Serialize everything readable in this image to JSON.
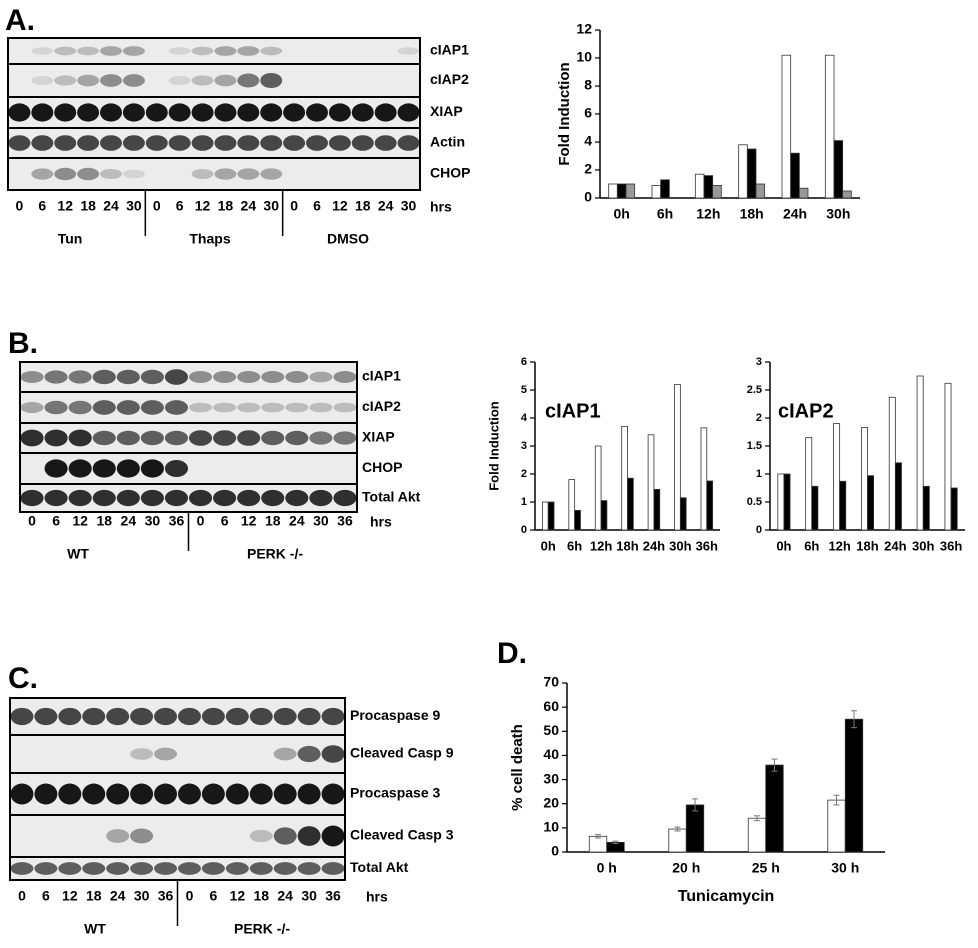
{
  "blots": {
    "A": {
      "label": "A.",
      "rows": [
        "cIAP1",
        "cIAP2",
        "XIAP",
        "Actin",
        "CHOP"
      ],
      "lanes": [
        "0",
        "6",
        "12",
        "18",
        "24",
        "30",
        "0",
        "6",
        "12",
        "18",
        "24",
        "30",
        "0",
        "6",
        "12",
        "18",
        "24",
        "30"
      ],
      "unit": "hrs",
      "groups": [
        "Tun",
        "Thaps",
        "DMSO"
      ]
    },
    "B": {
      "label": "B.",
      "rows": [
        "cIAP1",
        "cIAP2",
        "XIAP",
        "CHOP",
        "Total Akt"
      ],
      "lanes": [
        "0",
        "6",
        "12",
        "18",
        "24",
        "30",
        "36",
        "0",
        "6",
        "12",
        "18",
        "24",
        "30",
        "36"
      ],
      "unit": "hrs",
      "groups": [
        "WT",
        "PERK -/-"
      ]
    },
    "C": {
      "label": "C.",
      "rows": [
        "Procaspase 9",
        "Cleaved Casp 9",
        "Procaspase 3",
        "Cleaved Casp 3",
        "Total Akt"
      ],
      "lanes": [
        "0",
        "6",
        "12",
        "18",
        "24",
        "30",
        "36",
        "0",
        "6",
        "12",
        "18",
        "24",
        "30",
        "36"
      ],
      "unit": "hrs",
      "groups": [
        "WT",
        "PERK -/-"
      ]
    }
  },
  "chart_data": [
    {
      "type": "bar",
      "y_label": "Fold Induction",
      "categories": [
        "0h",
        "6h",
        "12h",
        "18h",
        "24h",
        "30h"
      ],
      "series": [
        {
          "color": "#ffffff",
          "values": [
            1,
            0.9,
            1.7,
            3.8,
            10.2,
            10.2
          ]
        },
        {
          "color": "#000000",
          "values": [
            1,
            1.3,
            1.6,
            3.5,
            3.2,
            4.1
          ]
        },
        {
          "color": "#999999",
          "values": [
            1,
            0,
            0.9,
            1,
            0.7,
            0.5
          ]
        }
      ],
      "ylim": [
        0,
        12
      ],
      "yticks": [
        0,
        2,
        4,
        6,
        8,
        10,
        12
      ]
    },
    {
      "type": "bar",
      "title": "cIAP1",
      "y_label": "Fold Induction",
      "categories": [
        "0h",
        "6h",
        "12h",
        "18h",
        "24h",
        "30h",
        "36h"
      ],
      "series": [
        {
          "color": "#ffffff",
          "values": [
            1,
            1.8,
            3,
            3.7,
            3.4,
            5.2,
            3.65
          ]
        },
        {
          "color": "#000000",
          "values": [
            1,
            0.7,
            1.05,
            1.85,
            1.45,
            1.15,
            1.75
          ]
        }
      ],
      "ylim": [
        0,
        6
      ],
      "yticks": [
        0,
        1,
        2,
        3,
        4,
        5,
        6
      ]
    },
    {
      "type": "bar",
      "title": "cIAP2",
      "categories": [
        "0h",
        "6h",
        "12h",
        "18h",
        "24h",
        "30h",
        "36h"
      ],
      "series": [
        {
          "color": "#ffffff",
          "values": [
            1,
            1.65,
            1.9,
            1.83,
            2.37,
            2.75,
            2.62
          ]
        },
        {
          "color": "#000000",
          "values": [
            1,
            0.78,
            0.87,
            0.97,
            1.2,
            0.78,
            0.75
          ]
        }
      ],
      "ylim": [
        0,
        3
      ],
      "yticks": [
        0,
        0.5,
        1,
        1.5,
        2,
        2.5,
        3
      ]
    },
    {
      "type": "bar",
      "title": "D.",
      "y_label": "% cell death",
      "x_label": "Tunicamycin",
      "categories": [
        "0 h",
        "20 h",
        "25 h",
        "30 h"
      ],
      "series": [
        {
          "color": "#ffffff",
          "values": [
            6.5,
            9.5,
            14,
            21.5
          ],
          "errors": [
            0.7,
            0.8,
            1,
            2
          ]
        },
        {
          "color": "#000000",
          "values": [
            4,
            19.5,
            36,
            55
          ],
          "errors": [
            0.5,
            2.5,
            2.5,
            3.5
          ]
        }
      ],
      "ylim": [
        0,
        70
      ],
      "yticks": [
        0,
        10,
        20,
        30,
        40,
        50,
        60,
        70
      ]
    }
  ]
}
